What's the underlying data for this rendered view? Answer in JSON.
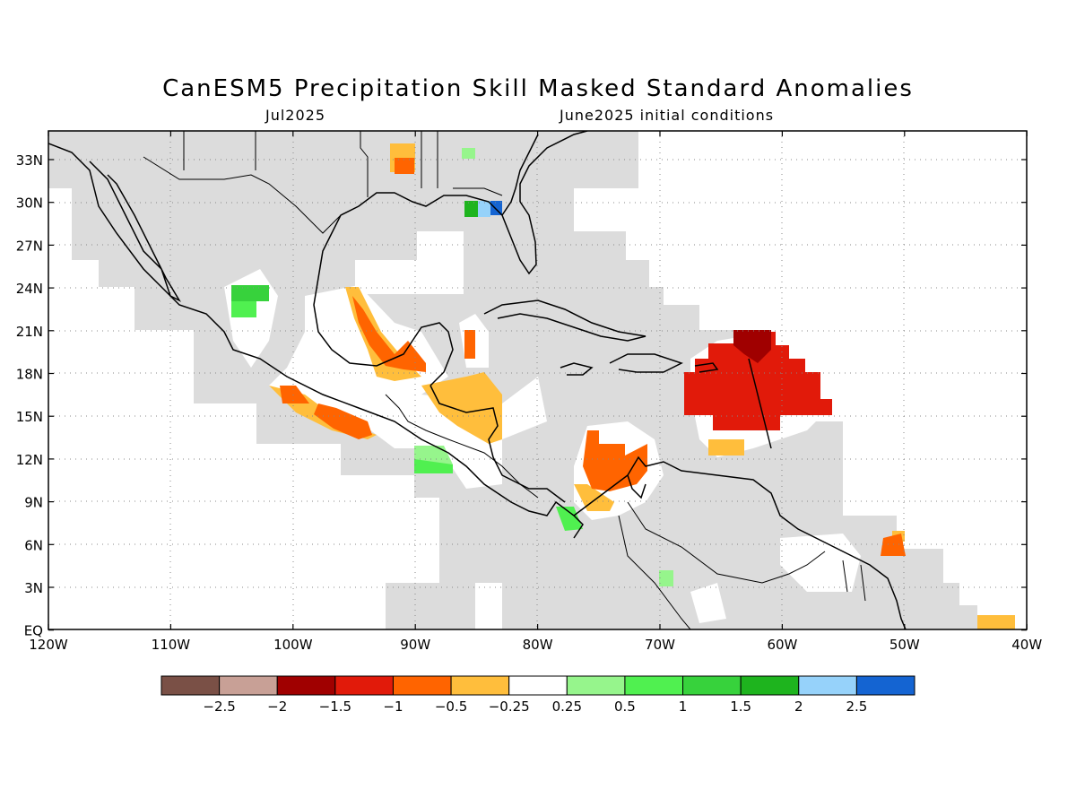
{
  "title": "CanESM5 Precipitation Skill Masked Standard Anomalies",
  "subtitle_left": "Jul2025",
  "subtitle_right": "June2025 initial conditions",
  "lat_labels": [
    "33N",
    "30N",
    "27N",
    "24N",
    "21N",
    "18N",
    "15N",
    "12N",
    "9N",
    "6N",
    "3N",
    "EQ"
  ],
  "lon_labels": [
    "120W",
    "110W",
    "100W",
    "90W",
    "80W",
    "70W",
    "60W",
    "50W",
    "40W"
  ],
  "colorbar": {
    "colors": [
      "#7a5046",
      "#c8a096",
      "#a00000",
      "#e11a0a",
      "#ff6400",
      "#ffbe3c",
      "#ffffff",
      "#96f58c",
      "#50f050",
      "#37d23c",
      "#1eb41e",
      "#96d2fa",
      "#1464d2"
    ],
    "labels": [
      "-2.5",
      "-2",
      "-1.5",
      "-1",
      "-0.5",
      "-0.25",
      "0.25",
      "0.5",
      "1",
      "1.5",
      "2",
      "2.5"
    ]
  },
  "colors": {
    "masked": "#dcdcdc",
    "land_outline": "#000000"
  }
}
